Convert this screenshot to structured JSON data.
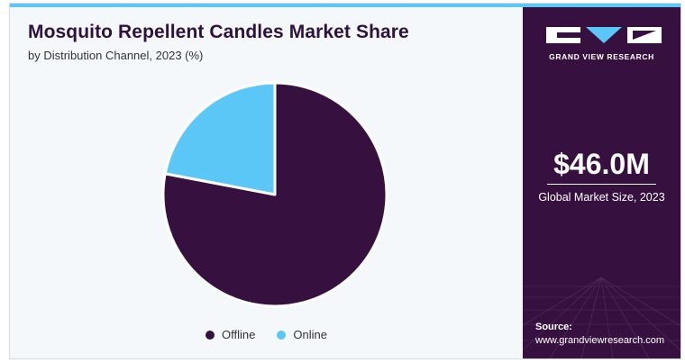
{
  "header": {
    "title": "Mosquito Repellent Candles Market Share",
    "subtitle": "by Distribution Channel, 2023 (%)"
  },
  "chart_data": {
    "type": "pie",
    "title": "Mosquito Repellent Candles Market Share",
    "subtitle": "by Distribution Channel, 2023 (%)",
    "categories": [
      "Offline",
      "Online"
    ],
    "values": [
      78,
      22
    ],
    "colors": [
      "#36113f",
      "#5bc7f6"
    ],
    "legend_position": "bottom",
    "start_angle_deg": 0,
    "direction": "clockwise"
  },
  "legend": {
    "items": [
      {
        "label": "Offline",
        "color": "#36113f"
      },
      {
        "label": "Online",
        "color": "#5bc7f6"
      }
    ]
  },
  "sidebar": {
    "brand": "GRAND VIEW RESEARCH",
    "market_value": "$46.0M",
    "market_label": "Global Market Size, 2023",
    "source_label": "Source:",
    "source_url": "www.grandviewresearch.com",
    "bg_color": "#36113f"
  }
}
